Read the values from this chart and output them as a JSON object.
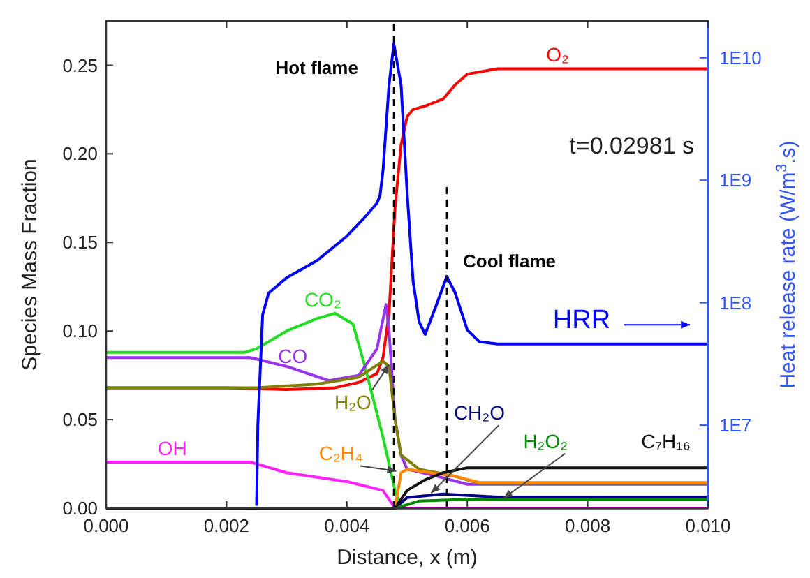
{
  "chart_data": {
    "type": "line",
    "xlabel": "Distance, x (m)",
    "ylabel": "Species Mass Fraction",
    "y2label": "Heat release rate (W/m$^{3}$.s)",
    "xlim": [
      0,
      0.01
    ],
    "xticks": [
      {
        "value": 0,
        "label": "0.000"
      },
      {
        "value": 0.002,
        "label": "0.002"
      },
      {
        "value": 0.004,
        "label": "0.004"
      },
      {
        "value": 0.006,
        "label": "0.006"
      },
      {
        "value": 0.008,
        "label": "0.008"
      },
      {
        "value": 0.01,
        "label": "0.010"
      }
    ],
    "ylim": [
      0,
      0.275
    ],
    "yticks": [
      {
        "value": 0,
        "label": "0.00"
      },
      {
        "value": 0.05,
        "label": "0.05"
      },
      {
        "value": 0.1,
        "label": "0.10"
      },
      {
        "value": 0.15,
        "label": "0.15"
      },
      {
        "value": 0.2,
        "label": "0.20"
      },
      {
        "value": 0.25,
        "label": "0.25"
      }
    ],
    "y2lim": [
      2100000.0,
      20000000000.0
    ],
    "y2ticks": [
      {
        "value": 10000000.0,
        "label": "1E7"
      },
      {
        "value": 100000000.0,
        "label": "1E8"
      },
      {
        "value": 1000000000.0,
        "label": "1E9"
      },
      {
        "value": 10000000000.0,
        "label": "1E10"
      }
    ],
    "log": "y2",
    "grid": false,
    "legend": false,
    "marker": "none",
    "line_style": "solid",
    "series": [
      {
        "name": "O₂",
        "color": "#ff0000",
        "x": [
          0,
          0.002,
          0.003,
          0.0038,
          0.0042,
          0.0045,
          0.0046,
          0.0047,
          0.00475,
          0.0048,
          0.0049,
          0.005,
          0.0051,
          0.0053,
          0.0056,
          0.0058,
          0.006,
          0.0065,
          0.01
        ],
        "values": [
          0.068,
          0.068,
          0.067,
          0.068,
          0.071,
          0.076,
          0.085,
          0.11,
          0.14,
          0.17,
          0.205,
          0.221,
          0.225,
          0.227,
          0.231,
          0.239,
          0.245,
          0.248,
          0.248
        ]
      },
      {
        "name": "CO₂",
        "color": "#22dd22",
        "x": [
          0,
          0.0023,
          0.0025,
          0.003,
          0.0035,
          0.0038,
          0.0041,
          0.0043,
          0.0046,
          0.0048,
          0.0049,
          0.01
        ],
        "values": [
          0.088,
          0.088,
          0.09,
          0.1,
          0.107,
          0.11,
          0.104,
          0.08,
          0.04,
          0.01,
          0,
          0
        ]
      },
      {
        "name": "CO",
        "color": "#9933ee",
        "x": [
          0,
          0.0024,
          0.003,
          0.0037,
          0.0042,
          0.0045,
          0.00465,
          0.0047,
          0.0048,
          0.0049,
          0.005,
          0.0055,
          0.006,
          0.01
        ],
        "values": [
          0.085,
          0.085,
          0.08,
          0.072,
          0.075,
          0.09,
          0.115,
          0.1,
          0.05,
          0.03,
          0.022,
          0.018,
          0.0135,
          0.0135
        ]
      },
      {
        "name": "H₂O",
        "color": "#808000",
        "x": [
          0,
          0.0025,
          0.0035,
          0.0042,
          0.0046,
          0.0047,
          0.0048,
          0.0049,
          0.0052,
          0.0058,
          0.0062,
          0.01
        ],
        "values": [
          0.068,
          0.068,
          0.07,
          0.074,
          0.083,
          0.08,
          0.05,
          0.03,
          0.022,
          0.018,
          0.014,
          0.014
        ]
      },
      {
        "name": "OH",
        "color": "#ff22ff",
        "x": [
          0,
          0.0024,
          0.003,
          0.004,
          0.0046,
          0.0047,
          0.0048,
          0.01
        ],
        "values": [
          0.026,
          0.026,
          0.02,
          0.015,
          0.01,
          0.005,
          0,
          0
        ]
      },
      {
        "name": "C₂H₄",
        "color": "#ff8800",
        "x": [
          0,
          0.0048,
          0.0049,
          0.005,
          0.0058,
          0.0062,
          0.01
        ],
        "values": [
          0,
          0,
          0.02,
          0.022,
          0.018,
          0.0145,
          0.0145
        ]
      },
      {
        "name": "CH₂O",
        "color": "#000080",
        "x": [
          0,
          0.0048,
          0.005,
          0.0056,
          0.0065,
          0.01
        ],
        "values": [
          0,
          0,
          0.006,
          0.008,
          0.0063,
          0.0063
        ]
      },
      {
        "name": "H₂O₂",
        "color": "#008800",
        "x": [
          0,
          0.0048,
          0.0052,
          0.006,
          0.01
        ],
        "values": [
          0,
          0,
          0.004,
          0.005,
          0.005
        ]
      },
      {
        "name": "C₇H₁₆",
        "color": "#111111",
        "x": [
          0,
          0.0048,
          0.005,
          0.0053,
          0.0056,
          0.006,
          0.01
        ],
        "values": [
          0,
          0,
          0.01,
          0.016,
          0.02,
          0.0228,
          0.0228
        ]
      },
      {
        "name": "HRR",
        "color": "#0000ff",
        "axis": "y2",
        "x": [
          0.0025,
          0.00252,
          0.0026,
          0.0027,
          0.003,
          0.0035,
          0.004,
          0.0043,
          0.0045,
          0.00455,
          0.0046,
          0.0047,
          0.00478,
          0.0049,
          0.005,
          0.0051,
          0.0052,
          0.0053,
          0.0055,
          0.00566,
          0.0058,
          0.006,
          0.0062,
          0.0065,
          0.01
        ],
        "values": [
          2200000.0,
          10000000.0,
          80000000.0,
          120000000.0,
          160000000.0,
          220000000.0,
          350000000.0,
          500000000.0,
          650000000.0,
          750000000.0,
          1200000000.0,
          6000000000.0,
          13000000000.0,
          6000000000.0,
          800000000.0,
          150000000.0,
          70000000.0,
          55000000.0,
          100000000.0,
          164000000.0,
          120000000.0,
          60000000.0,
          48000000.0,
          46000000.0,
          46000000.0
        ]
      }
    ],
    "ref_lines": [
      {
        "axis": "x",
        "value": 0.00478,
        "label": "Hot flame",
        "line_style": "dashed",
        "color": "#000000"
      },
      {
        "axis": "x",
        "value": 0.00566,
        "label": "Cool flame",
        "line_style": "dashed",
        "color": "#000000"
      }
    ],
    "annotations": [
      "t=0.02981 s"
    ]
  }
}
